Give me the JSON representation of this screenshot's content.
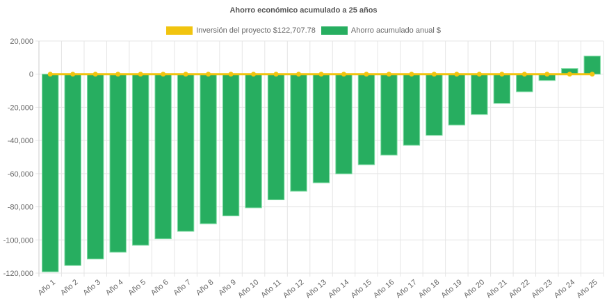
{
  "chart_data": {
    "type": "bar",
    "title": "Ahorro económico acumulado a 25 años",
    "xlabel": "",
    "ylabel": "",
    "ylim": [
      -120000,
      20000
    ],
    "yticks": [
      20000,
      0,
      -20000,
      -40000,
      -60000,
      -80000,
      -100000,
      -120000
    ],
    "ytick_labels": [
      "20,000",
      "0",
      "-20,000",
      "-40,000",
      "-60,000",
      "-80,000",
      "-100,000",
      "-120,000"
    ],
    "grid": true,
    "legend_position": "top",
    "categories": [
      "Año 1",
      "Año 2",
      "Año 3",
      "Año 4",
      "Año 5",
      "Año 6",
      "Año 7",
      "Año 8",
      "Año 9",
      "Año 10",
      "Año 11",
      "Año 12",
      "Año 13",
      "Año 14",
      "Año 15",
      "Año 16",
      "Año 17",
      "Año 18",
      "Año 19",
      "Año 20",
      "Año 21",
      "Año 22",
      "Año 23",
      "Año 24",
      "Año 25"
    ],
    "series": [
      {
        "name": "Inversión del proyecto $122,707.78",
        "type": "line",
        "color": "#f1c40f",
        "values": [
          0,
          0,
          0,
          0,
          0,
          0,
          0,
          0,
          0,
          0,
          0,
          0,
          0,
          0,
          0,
          0,
          0,
          0,
          0,
          0,
          0,
          0,
          0,
          0,
          0
        ]
      },
      {
        "name": "Ahorro acumulado anual $",
        "type": "bar",
        "color": "#27ae60",
        "values": [
          -119200,
          -115400,
          -111500,
          -107400,
          -103200,
          -99300,
          -94800,
          -90200,
          -85500,
          -80600,
          -75800,
          -70600,
          -65500,
          -60100,
          -54600,
          -48800,
          -42900,
          -36900,
          -30700,
          -24300,
          -17600,
          -10600,
          -3800,
          3400,
          10900
        ]
      }
    ]
  }
}
